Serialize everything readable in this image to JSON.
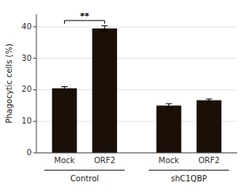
{
  "chart_data": {
    "type": "bar",
    "categories": [
      "Mock",
      "ORF2",
      "Mock",
      "ORF2"
    ],
    "values": [
      20.5,
      39.5,
      15.0,
      16.7
    ],
    "errors": [
      0.5,
      0.9,
      0.6,
      0.4
    ],
    "color": "#1a1008",
    "group_labels": [
      "Control",
      "shC1QBP"
    ],
    "y_label": "Phagocytic cells (%)",
    "ylim": [
      0,
      44
    ],
    "yticks": [
      0,
      10,
      20,
      30,
      40
    ],
    "annotations": [
      {
        "text": "**",
        "between": [
          0,
          1
        ],
        "y": 42.0
      }
    ]
  }
}
